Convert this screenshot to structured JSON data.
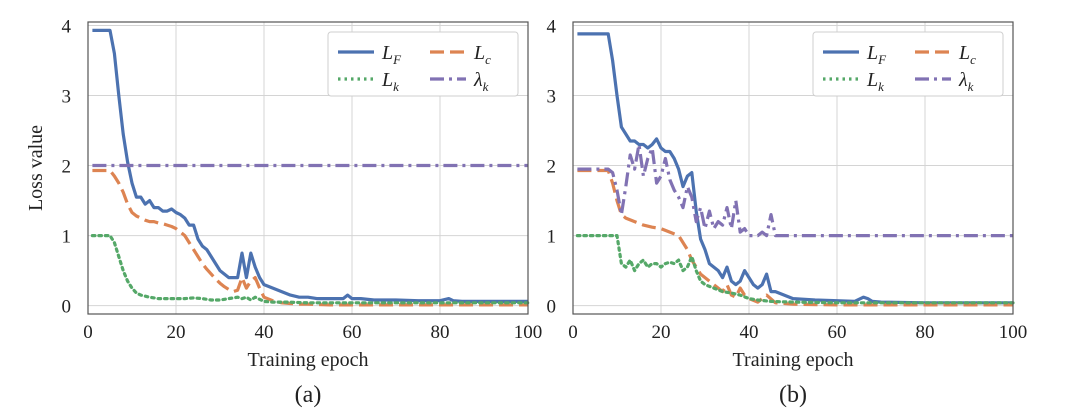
{
  "chart_data": [
    {
      "type": "line",
      "panel_label": "(a)",
      "xlabel": "Training epoch",
      "ylabel": "Loss value",
      "xlim": [
        0,
        100
      ],
      "ylim": [
        -0.12,
        4.05
      ],
      "xticks": [
        0,
        20,
        40,
        60,
        80,
        100
      ],
      "yticks": [
        0,
        1,
        2,
        3,
        4
      ],
      "grid": true,
      "legend_position": "top-right",
      "series": [
        {
          "name": "L_F",
          "label_main": "L",
          "label_sub": "F",
          "color": "#4c72b0",
          "dash": "solid",
          "x": [
            1,
            5,
            6,
            7,
            8,
            9,
            10,
            11,
            12,
            13,
            14,
            15,
            16,
            17,
            18,
            19,
            20,
            21,
            22,
            23,
            24,
            25,
            26,
            27,
            28,
            29,
            30,
            31,
            32,
            33,
            34,
            35,
            36,
            37,
            38,
            39,
            40,
            42,
            44,
            46,
            48,
            50,
            52,
            55,
            58,
            59,
            60,
            62,
            65,
            70,
            75,
            80,
            82,
            83,
            85,
            90,
            95,
            100
          ],
          "y": [
            3.93,
            3.93,
            3.6,
            3.0,
            2.45,
            2.05,
            1.75,
            1.55,
            1.55,
            1.45,
            1.5,
            1.4,
            1.4,
            1.35,
            1.35,
            1.38,
            1.33,
            1.3,
            1.25,
            1.15,
            1.15,
            0.95,
            0.85,
            0.8,
            0.7,
            0.6,
            0.5,
            0.45,
            0.4,
            0.4,
            0.4,
            0.75,
            0.4,
            0.75,
            0.55,
            0.4,
            0.3,
            0.25,
            0.2,
            0.15,
            0.12,
            0.12,
            0.1,
            0.1,
            0.1,
            0.15,
            0.1,
            0.1,
            0.08,
            0.08,
            0.07,
            0.07,
            0.1,
            0.07,
            0.06,
            0.06,
            0.06,
            0.06
          ]
        },
        {
          "name": "L_c",
          "label_main": "L",
          "label_sub": "c",
          "color": "#dd8452",
          "dash": "dashed",
          "x": [
            1,
            5,
            6,
            7,
            8,
            9,
            10,
            11,
            12,
            13,
            14,
            15,
            16,
            17,
            18,
            19,
            20,
            21,
            22,
            23,
            24,
            25,
            26,
            27,
            28,
            29,
            30,
            31,
            32,
            33,
            34,
            35,
            36,
            37,
            38,
            39,
            40,
            42,
            44,
            46,
            48,
            50,
            55,
            60,
            70,
            80,
            90,
            100
          ],
          "y": [
            1.93,
            1.93,
            1.85,
            1.75,
            1.62,
            1.45,
            1.33,
            1.28,
            1.25,
            1.22,
            1.2,
            1.2,
            1.18,
            1.17,
            1.15,
            1.13,
            1.1,
            1.05,
            1.0,
            0.9,
            0.8,
            0.7,
            0.6,
            0.52,
            0.45,
            0.38,
            0.32,
            0.27,
            0.23,
            0.2,
            0.22,
            0.4,
            0.25,
            0.35,
            0.4,
            0.25,
            0.12,
            0.07,
            0.04,
            0.03,
            0.02,
            0.02,
            0.01,
            0.01,
            0.01,
            0.01,
            0.01,
            0.01
          ]
        },
        {
          "name": "L_k",
          "label_main": "L",
          "label_sub": "k",
          "color": "#55a868",
          "dash": "dotted",
          "x": [
            1,
            5,
            6,
            7,
            8,
            9,
            10,
            11,
            12,
            14,
            16,
            18,
            20,
            22,
            24,
            26,
            28,
            30,
            32,
            34,
            35,
            36,
            37,
            38,
            40,
            42,
            45,
            50,
            60,
            70,
            80,
            90,
            100
          ],
          "y": [
            1.0,
            1.0,
            0.9,
            0.7,
            0.5,
            0.35,
            0.25,
            0.18,
            0.15,
            0.12,
            0.1,
            0.1,
            0.1,
            0.1,
            0.11,
            0.1,
            0.08,
            0.08,
            0.1,
            0.12,
            0.1,
            0.12,
            0.08,
            0.12,
            0.06,
            0.05,
            0.05,
            0.04,
            0.04,
            0.04,
            0.04,
            0.04,
            0.04
          ]
        },
        {
          "name": "lambda_k",
          "label_main": "λ",
          "label_sub": "k",
          "color": "#8172b3",
          "dash": "dashdot",
          "x": [
            1,
            100
          ],
          "y": [
            2.0,
            2.0
          ]
        }
      ]
    },
    {
      "type": "line",
      "panel_label": "(b)",
      "xlabel": "Training epoch",
      "ylabel": "",
      "xlim": [
        0,
        100
      ],
      "ylim": [
        -0.12,
        4.05
      ],
      "xticks": [
        0,
        20,
        40,
        60,
        80,
        100
      ],
      "yticks": [
        0,
        1,
        2,
        3,
        4
      ],
      "grid": true,
      "legend_position": "top-right",
      "series": [
        {
          "name": "L_F",
          "label_main": "L",
          "label_sub": "F",
          "color": "#4c72b0",
          "dash": "solid",
          "x": [
            1,
            8,
            9,
            10,
            11,
            12,
            13,
            14,
            15,
            16,
            17,
            18,
            19,
            20,
            21,
            22,
            23,
            24,
            25,
            26,
            27,
            28,
            29,
            30,
            31,
            32,
            33,
            34,
            35,
            36,
            37,
            38,
            39,
            40,
            41,
            42,
            43,
            44,
            45,
            46,
            48,
            50,
            55,
            60,
            64,
            66,
            67,
            68,
            70,
            80,
            90,
            100
          ],
          "y": [
            3.88,
            3.88,
            3.5,
            3.0,
            2.55,
            2.45,
            2.35,
            2.35,
            2.3,
            2.3,
            2.25,
            2.3,
            2.38,
            2.25,
            2.2,
            2.2,
            2.1,
            1.95,
            1.7,
            1.85,
            1.9,
            1.35,
            0.95,
            0.8,
            0.6,
            0.55,
            0.5,
            0.4,
            0.55,
            0.35,
            0.3,
            0.35,
            0.5,
            0.4,
            0.3,
            0.25,
            0.3,
            0.45,
            0.2,
            0.2,
            0.15,
            0.1,
            0.08,
            0.07,
            0.06,
            0.12,
            0.1,
            0.06,
            0.05,
            0.04,
            0.04,
            0.04
          ]
        },
        {
          "name": "L_c",
          "label_main": "L",
          "label_sub": "c",
          "color": "#dd8452",
          "dash": "dashed",
          "x": [
            1,
            8,
            9,
            10,
            11,
            12,
            14,
            16,
            18,
            20,
            22,
            24,
            26,
            27,
            28,
            29,
            30,
            31,
            32,
            33,
            34,
            35,
            36,
            37,
            38,
            39,
            40,
            42,
            44,
            46,
            50,
            60,
            70,
            80,
            90,
            100
          ],
          "y": [
            1.93,
            1.93,
            1.75,
            1.5,
            1.3,
            1.25,
            1.2,
            1.15,
            1.12,
            1.1,
            1.05,
            1.0,
            0.8,
            0.65,
            0.55,
            0.45,
            0.4,
            0.35,
            0.3,
            0.25,
            0.2,
            0.3,
            0.15,
            0.12,
            0.25,
            0.15,
            0.1,
            0.05,
            0.15,
            0.04,
            0.02,
            0.01,
            0.01,
            0.01,
            0.01,
            0.01
          ]
        },
        {
          "name": "L_k",
          "label_main": "L",
          "label_sub": "k",
          "color": "#55a868",
          "dash": "dotted",
          "x": [
            1,
            8,
            10,
            11,
            12,
            13,
            14,
            15,
            16,
            17,
            18,
            19,
            20,
            21,
            22,
            23,
            24,
            25,
            26,
            27,
            28,
            29,
            30,
            32,
            34,
            36,
            38,
            40,
            42,
            45,
            50,
            60,
            70,
            80,
            90,
            100
          ],
          "y": [
            1.0,
            1.0,
            1.0,
            0.6,
            0.55,
            0.65,
            0.5,
            0.6,
            0.65,
            0.55,
            0.6,
            0.6,
            0.55,
            0.6,
            0.62,
            0.6,
            0.65,
            0.5,
            0.55,
            0.7,
            0.5,
            0.35,
            0.3,
            0.25,
            0.2,
            0.18,
            0.15,
            0.1,
            0.08,
            0.06,
            0.05,
            0.04,
            0.04,
            0.04,
            0.04,
            0.04
          ]
        },
        {
          "name": "lambda_k",
          "label_main": "λ",
          "label_sub": "k",
          "color": "#8172b3",
          "dash": "dashdot",
          "x": [
            1,
            8,
            9,
            10,
            11,
            12,
            13,
            14,
            15,
            16,
            17,
            18,
            19,
            20,
            21,
            22,
            23,
            24,
            25,
            26,
            27,
            28,
            29,
            30,
            31,
            32,
            33,
            34,
            35,
            36,
            37,
            38,
            39,
            40,
            41,
            42,
            43,
            44,
            45,
            46,
            50,
            60,
            70,
            80,
            90,
            100
          ],
          "y": [
            1.95,
            1.95,
            1.9,
            1.65,
            1.3,
            1.7,
            2.15,
            1.95,
            2.3,
            1.85,
            2.1,
            2.25,
            1.75,
            1.85,
            2.1,
            1.8,
            1.65,
            1.55,
            1.4,
            1.7,
            1.55,
            1.2,
            1.4,
            1.1,
            1.35,
            1.1,
            1.2,
            1.15,
            1.4,
            1.1,
            1.5,
            1.05,
            1.1,
            1.0,
            1.0,
            1.0,
            1.05,
            1.0,
            1.3,
            1.0,
            1.0,
            1.0,
            1.0,
            1.0,
            1.0,
            1.0
          ]
        }
      ]
    }
  ]
}
